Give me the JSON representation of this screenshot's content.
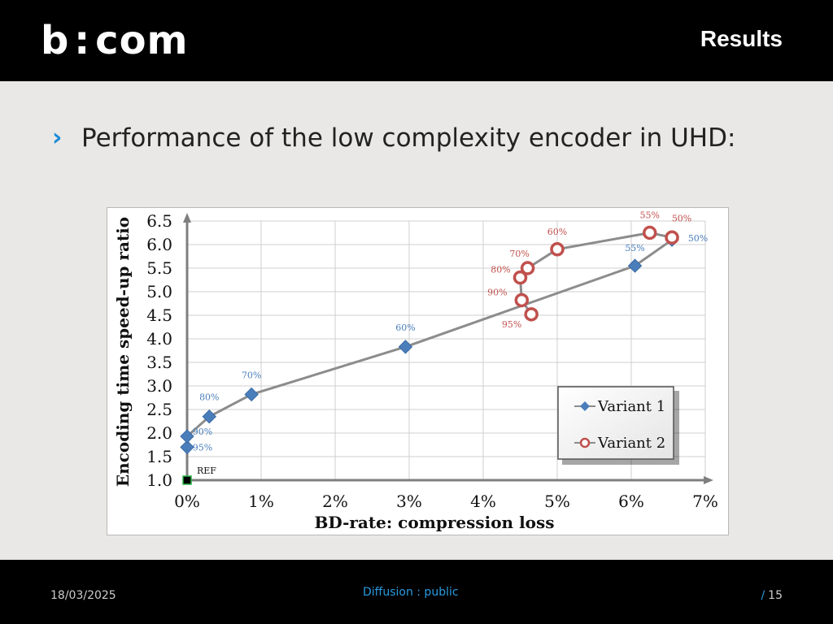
{
  "header": {
    "logo": "b<>com",
    "logo_left": "b",
    "logo_right": "com",
    "title": "Results"
  },
  "bullet": {
    "text": "Performance of the low complexity encoder in UHD:"
  },
  "footer": {
    "date": "18/03/2025",
    "diffusion": "Diffusion : public",
    "page_sep": "/",
    "page": "15"
  },
  "colors": {
    "variant1": "#4a7ebb",
    "variant2": "#c0504d",
    "accent": "#2a9be0"
  },
  "chart_data": {
    "type": "line",
    "xlabel": "BD-rate: compression loss",
    "ylabel": "Encoding time speed-up ratio",
    "xlim": [
      0,
      7
    ],
    "ylim": [
      1.0,
      6.5
    ],
    "x_ticks": [
      0,
      1,
      2,
      3,
      4,
      5,
      6,
      7
    ],
    "x_tick_labels": [
      "0%",
      "1%",
      "2%",
      "3%",
      "4%",
      "5%",
      "6%",
      "7%"
    ],
    "y_ticks": [
      1.0,
      1.5,
      2.0,
      2.5,
      3.0,
      3.5,
      4.0,
      4.5,
      5.0,
      5.5,
      6.0,
      6.5
    ],
    "y_tick_labels": [
      "1.0",
      "1.5",
      "2.0",
      "2.5",
      "3.0",
      "3.5",
      "4.0",
      "4.5",
      "5.0",
      "5.5",
      "6.0",
      "6.5"
    ],
    "grid": true,
    "ref": {
      "x": 0,
      "y": 1.0,
      "label": "REF"
    },
    "legend": {
      "position": "bottom-right",
      "entries": [
        "Variant 1",
        "Variant 2"
      ]
    },
    "series": [
      {
        "name": "Variant 1",
        "marker": "diamond",
        "points": [
          {
            "x": 0.0,
            "y": 1.7,
            "label": "95%"
          },
          {
            "x": 0.0,
            "y": 1.93,
            "label": "90%"
          },
          {
            "x": 0.3,
            "y": 2.35,
            "label": "80%"
          },
          {
            "x": 0.87,
            "y": 2.82,
            "label": "70%"
          },
          {
            "x": 2.95,
            "y": 3.83,
            "label": "60%"
          },
          {
            "x": 6.05,
            "y": 5.55,
            "label": "55%"
          },
          {
            "x": 6.55,
            "y": 6.1,
            "label": "50%"
          }
        ]
      },
      {
        "name": "Variant 2",
        "marker": "circle",
        "points": [
          {
            "x": 4.65,
            "y": 4.52,
            "label": "95%"
          },
          {
            "x": 4.52,
            "y": 4.82,
            "label": "90%"
          },
          {
            "x": 4.5,
            "y": 5.3,
            "label": "80%"
          },
          {
            "x": 4.6,
            "y": 5.5,
            "label": "70%"
          },
          {
            "x": 5.0,
            "y": 5.9,
            "label": "60%"
          },
          {
            "x": 6.25,
            "y": 6.25,
            "label": "55%"
          },
          {
            "x": 6.55,
            "y": 6.15,
            "label": "50%"
          }
        ]
      }
    ]
  }
}
